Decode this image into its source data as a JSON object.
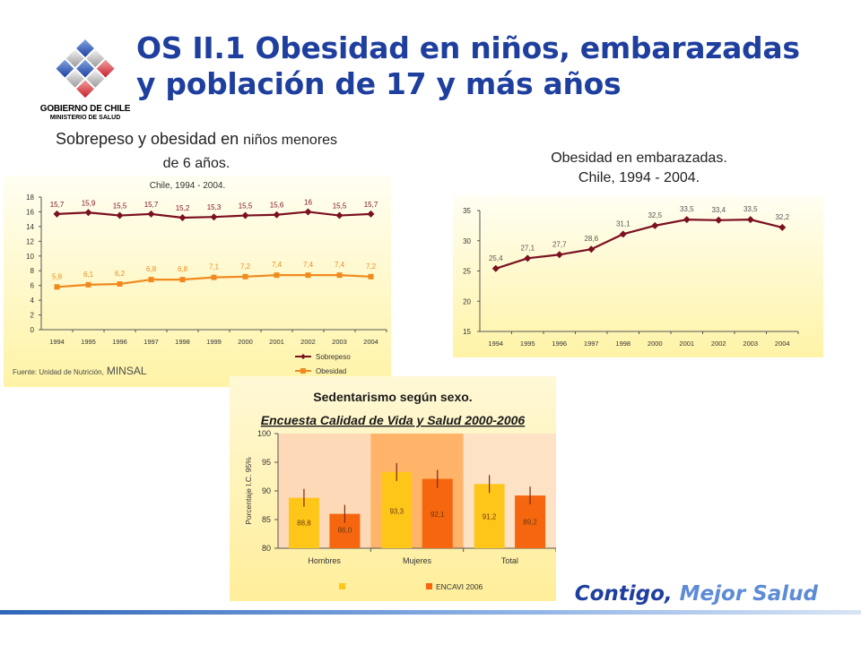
{
  "header": {
    "title_line1": "OS II.1 Obesidad en niños, embarazadas",
    "title_line2": "y población de 17 y más años",
    "logo_line1": "GOBIERNO DE CHILE",
    "logo_line2": "MINISTERIO DE SALUD"
  },
  "footer": {
    "slogan_part1": "Contigo,",
    "slogan_part2": "Mejor Salud"
  },
  "colors": {
    "title": "#1f3f9f",
    "sobrepeso": "#7a1020",
    "obesidad": "#f08a1e",
    "bar_2000": "#ffc61a",
    "bar_2006": "#f5660f"
  },
  "chart_data": [
    {
      "type": "line",
      "title_part1": "Sobrepeso y obesidad en",
      "title_part2": "niños menores",
      "title_part3": "de 6 años.",
      "subtitle": "Chile, 1994 - 2004.",
      "source_prefix": "Fuente: Unidad de Nutrición,",
      "source_emph": "MINSAL",
      "x": [
        "1994",
        "1995",
        "1996",
        "1997",
        "1998",
        "1999",
        "2000",
        "2001",
        "2002",
        "2003",
        "2004"
      ],
      "series": [
        {
          "name": "Sobrepeso",
          "values": [
            15.7,
            15.9,
            15.5,
            15.7,
            15.2,
            15.3,
            15.5,
            15.6,
            16,
            15.5,
            15.7
          ],
          "labels": [
            "15,7",
            "15,9",
            "15,5",
            "15,7",
            "15,2",
            "15,3",
            "15,5",
            "15,6",
            "16",
            "15,5",
            "15,7"
          ]
        },
        {
          "name": "Obesidad",
          "values": [
            5.8,
            6.1,
            6.2,
            6.8,
            6.8,
            7.1,
            7.2,
            7.4,
            7.4,
            7.4,
            7.2
          ],
          "labels": [
            "5,8",
            "6,1",
            "6,2",
            "6,8",
            "6,8",
            "7,1",
            "7,2",
            "7,4",
            "7,4",
            "7,4",
            "7,2"
          ]
        }
      ],
      "ylim": [
        0,
        18
      ],
      "yticks": [
        "0",
        "2",
        "4",
        "6",
        "8",
        "10",
        "12",
        "14",
        "16",
        "18"
      ],
      "legend": "bottom-right",
      "grid": false
    },
    {
      "type": "line",
      "title_line1": "Obesidad en embarazadas.",
      "title_line2": "Chile, 1994 - 2004.",
      "x": [
        "1994",
        "1995",
        "1996",
        "1997",
        "1998",
        "2000",
        "2001",
        "2002",
        "2003",
        "2004"
      ],
      "series": [
        {
          "values": [
            25.4,
            27.1,
            27.7,
            28.6,
            31.1,
            32.5,
            33.5,
            33.4,
            33.5,
            32.2
          ],
          "labels": [
            "25,4",
            "27,1",
            "27,7",
            "28,6",
            "31,1",
            "32,5",
            "33,5",
            "33,4",
            "33,5",
            "32,2"
          ]
        }
      ],
      "ylim": [
        15,
        35
      ],
      "yticks": [
        "15",
        "20",
        "25",
        "30",
        "35"
      ],
      "legend": "none",
      "grid": false
    },
    {
      "type": "bar",
      "title_line1": "Sedentarismo según sexo.",
      "title_line2": "Encuesta Calidad de Vida y Salud  2000-2006",
      "ylabel": "Porcentaje I.C. 95%",
      "categories": [
        "Hombres",
        "Mujeres",
        "Total"
      ],
      "series": [
        {
          "name": "",
          "values": [
            88.8,
            93.3,
            91.2
          ],
          "labels": [
            "88,8",
            "93,3",
            "91,2"
          ]
        },
        {
          "name": "ENCAVI 2006",
          "values": [
            86.0,
            92.1,
            89.2
          ],
          "labels": [
            "86,0",
            "92,1",
            "89,2"
          ]
        }
      ],
      "ylim": [
        80,
        100
      ],
      "yticks": [
        "80",
        "85",
        "90",
        "95",
        "100"
      ],
      "legend": "bottom",
      "grid": false
    }
  ]
}
